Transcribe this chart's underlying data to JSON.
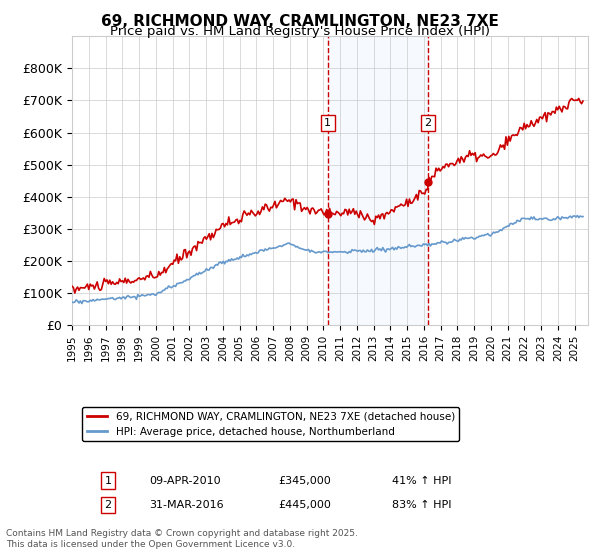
{
  "title": "69, RICHMOND WAY, CRAMLINGTON, NE23 7XE",
  "subtitle": "Price paid vs. HM Land Registry's House Price Index (HPI)",
  "red_label": "69, RICHMOND WAY, CRAMLINGTON, NE23 7XE (detached house)",
  "blue_label": "HPI: Average price, detached house, Northumberland",
  "marker1_date": "09-APR-2010",
  "marker1_price": 345000,
  "marker1_hpi": "41% ↑ HPI",
  "marker2_date": "31-MAR-2016",
  "marker2_price": 445000,
  "marker2_hpi": "83% ↑ HPI",
  "footer": "Contains HM Land Registry data © Crown copyright and database right 2025.\nThis data is licensed under the Open Government Licence v3.0.",
  "red_color": "#cc0000",
  "blue_color": "#6699cc",
  "shaded_color": "#ddeeff",
  "vline_color": "#cc0000",
  "ylim": [
    0,
    900000
  ],
  "yticks": [
    0,
    100000,
    200000,
    300000,
    400000,
    500000,
    600000,
    700000,
    800000
  ],
  "ytick_labels": [
    "£0",
    "£100K",
    "£200K",
    "£300K",
    "£400K",
    "£500K",
    "£600K",
    "£700K",
    "£800K"
  ],
  "x_start_year": 1995,
  "x_end_year": 2025,
  "marker1_x": 2010.27,
  "marker2_x": 2016.25,
  "background_color": "#ffffff",
  "grid_color": "#cccccc"
}
